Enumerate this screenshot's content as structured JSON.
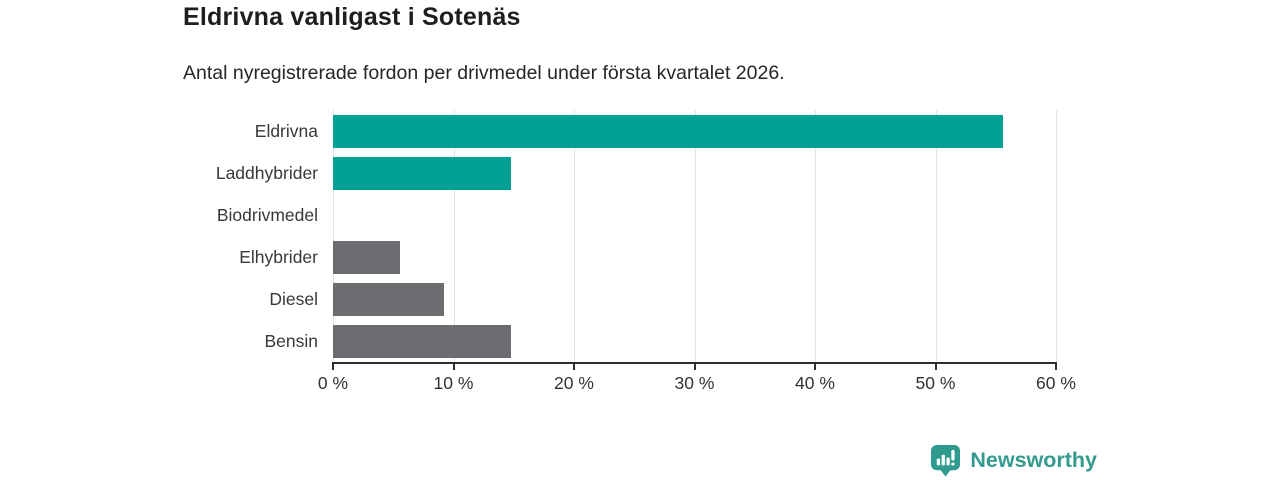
{
  "chart_data": {
    "type": "bar",
    "orientation": "horizontal",
    "title": "Eldrivna vanligast i Sotenäs",
    "subtitle": "Antal nyregistrerade fordon per drivmedel under första kvartalet 2026.",
    "categories": [
      "Eldrivna",
      "Laddhybrider",
      "Biodrivmedel",
      "Elhybrider",
      "Diesel",
      "Bensin"
    ],
    "values": [
      55.6,
      14.8,
      0,
      5.6,
      9.2,
      14.8
    ],
    "unit": "%",
    "bar_colors": [
      "#00a096",
      "#00a096",
      "#6c6c71",
      "#6c6c71",
      "#6c6c71",
      "#6c6c71"
    ],
    "x_ticks": [
      "0 %",
      "10 %",
      "20 %",
      "30 %",
      "40 %",
      "50 %",
      "60 %"
    ],
    "x_tick_values": [
      0,
      10,
      20,
      30,
      40,
      50,
      60
    ],
    "xlim": [
      0,
      60
    ],
    "grid": true,
    "legend": "none"
  },
  "footer": {
    "brand": "Newsworthy",
    "brand_color": "#339a8d",
    "logo_icon": "bar-chart-speech-bubble-icon",
    "logo_bg_color": "#2f9a8e"
  },
  "colors": {
    "accent_teal": "#00a096",
    "neutral_gray": "#6c6c71",
    "axis": "#2e2e2e",
    "gridline": "#e3e3e3",
    "background": "#ffffff"
  }
}
